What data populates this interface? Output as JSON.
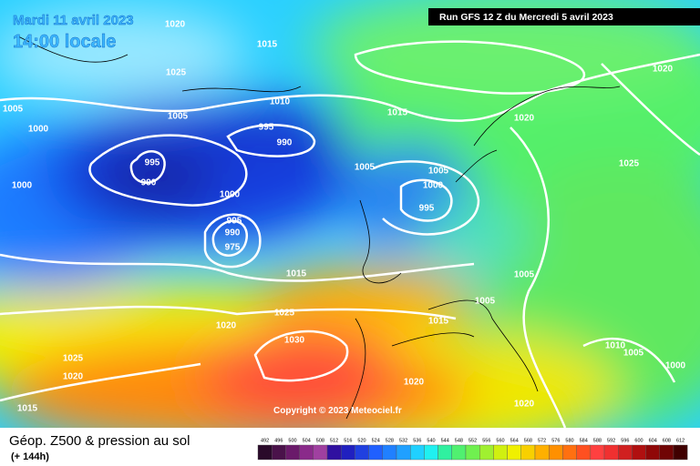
{
  "header": {
    "date": "Mardi 11 avril 2023",
    "time": "14:00 locale",
    "run": "Run GFS 12 Z du Mercredi 5 avril 2023"
  },
  "copyright": "Copyright © 2023 Meteociel.fr",
  "footer": {
    "title": "Géop. Z500 & pression au sol",
    "subtitle": "(+ 144h)"
  },
  "legend": [
    492,
    496,
    500,
    504,
    508,
    512,
    516,
    520,
    524,
    528,
    532,
    536,
    540,
    544,
    548,
    552,
    556,
    560,
    564,
    568,
    572,
    576,
    580,
    584,
    588,
    592,
    596,
    600,
    604,
    608,
    612
  ],
  "isobars": [
    1020,
    1015,
    1025,
    1005,
    1005,
    1000,
    1010,
    995,
    990,
    1015,
    1020,
    1020,
    995,
    990,
    1000,
    1000,
    1005,
    1005,
    1000,
    995,
    1025,
    995,
    990,
    975,
    1015,
    1005,
    1005,
    1025,
    1020,
    1015,
    1030,
    1010,
    1005,
    1025,
    1020,
    1000,
    1020,
    1015,
    1020
  ]
}
